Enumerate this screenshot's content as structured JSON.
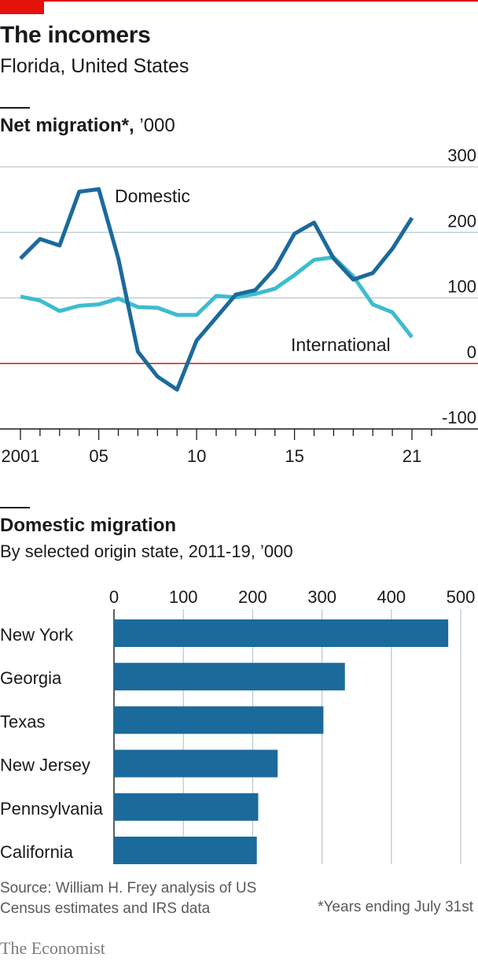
{
  "header": {
    "title": "The incomers",
    "subtitle": "Florida, United States"
  },
  "line_section": {
    "title_bold": "Net migration*,",
    "title_unit": " ’000"
  },
  "bar_section": {
    "title": "Domestic migration",
    "subtitle": "By selected origin state, 2011-19, ’000"
  },
  "colors": {
    "domestic": "#1b6a9c",
    "international": "#3ebccf",
    "zero_line": "#e3120b",
    "grid": "#b7c6cf",
    "bar": "#1b6a9c",
    "brand_red": "#e3120b"
  },
  "chart_data": [
    {
      "type": "line",
      "title": "Net migration*, ’000",
      "x": [
        2001,
        2002,
        2003,
        2004,
        2005,
        2006,
        2007,
        2008,
        2009,
        2010,
        2011,
        2012,
        2013,
        2014,
        2015,
        2016,
        2017,
        2018,
        2019,
        2020,
        2021
      ],
      "xticks": [
        2001,
        2005,
        2010,
        2015,
        2021
      ],
      "xtick_labels": [
        "2001",
        "05",
        "10",
        "15",
        "21"
      ],
      "ylim": [
        -100,
        300
      ],
      "yticks": [
        -100,
        0,
        100,
        200,
        300
      ],
      "ytick_labels": [
        "-100",
        "0",
        "100",
        "200",
        "300"
      ],
      "series": [
        {
          "name": "Domestic",
          "values": [
            160,
            190,
            180,
            262,
            266,
            160,
            18,
            -20,
            -40,
            35,
            70,
            105,
            112,
            145,
            198,
            215,
            160,
            128,
            138,
            175,
            222
          ]
        },
        {
          "name": "International",
          "values": [
            102,
            96,
            80,
            88,
            90,
            99,
            86,
            85,
            74,
            74,
            103,
            101,
            106,
            114,
            135,
            158,
            162,
            133,
            90,
            78,
            40
          ]
        }
      ],
      "grid": true,
      "zero_line": true,
      "legend": "inline labels"
    },
    {
      "type": "bar",
      "orientation": "horizontal",
      "title": "Domestic migration",
      "subtitle": "By selected origin state, 2011-19, ’000",
      "categories": [
        "New York",
        "Georgia",
        "Texas",
        "New Jersey",
        "Pennsylvania",
        "California"
      ],
      "values": [
        482,
        333,
        302,
        236,
        208,
        206
      ],
      "xlim": [
        0,
        500
      ],
      "xticks": [
        0,
        100,
        200,
        300,
        400,
        500
      ],
      "xtick_labels": [
        "0",
        "100",
        "200",
        "300",
        "400",
        "500"
      ],
      "grid": true
    }
  ],
  "footer": {
    "source": "Source: William H. Frey analysis of US Census estimates and IRS data",
    "footnote": "*Years ending July 31st",
    "logo": "The Economist"
  }
}
